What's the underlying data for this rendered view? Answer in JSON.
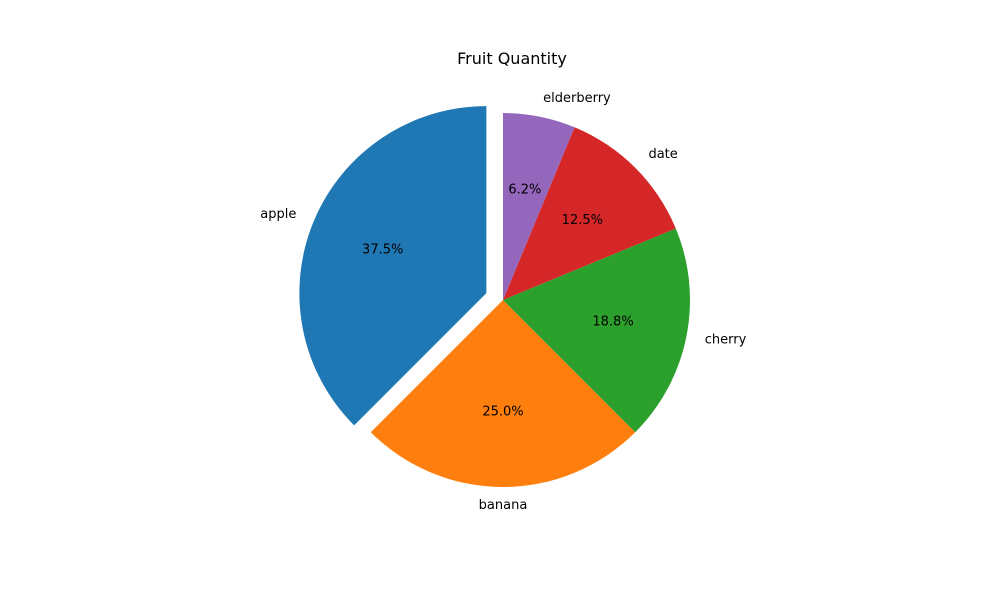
{
  "chart_data": {
    "type": "pie",
    "title": "Fruit Quantity",
    "categories": [
      "apple",
      "banana",
      "cherry",
      "date",
      "elderberry"
    ],
    "values": [
      6,
      4,
      3,
      2,
      1
    ],
    "percent_labels": [
      "37.5%",
      "25.0%",
      "18.8%",
      "12.5%",
      "6.2%"
    ],
    "colors": [
      "#1f77b4",
      "#ff7f0e",
      "#2ca02c",
      "#d62728",
      "#9467bd"
    ],
    "exploded": [
      true,
      false,
      false,
      false,
      false
    ],
    "start_angle_deg": 90,
    "direction": "counterclockwise",
    "legend": "none"
  }
}
